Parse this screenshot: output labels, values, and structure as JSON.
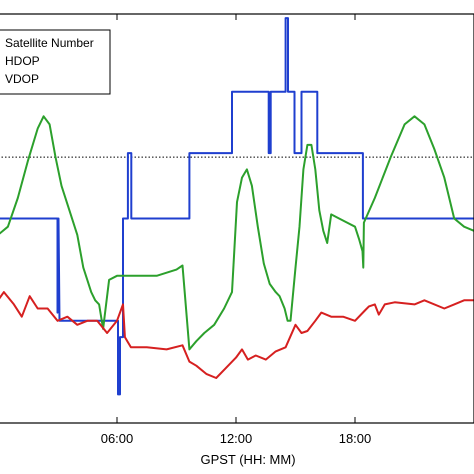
{
  "chart_data": {
    "type": "line",
    "xlabel": "GPST (HH: MM)",
    "xlim": [
      0,
      24
    ],
    "x_ticks": [
      {
        "value": 6,
        "label": "06:00"
      },
      {
        "value": 12,
        "label": "12:00"
      },
      {
        "value": 18,
        "label": "18:00"
      }
    ],
    "legend": {
      "placement": "top-left",
      "entries": [
        "Satellite Number",
        "HDOP",
        "VDOP"
      ]
    },
    "reference_line": {
      "style": "dotted",
      "y": 6.5
    },
    "grid": false,
    "series": [
      {
        "name": "Satellite Number",
        "color": "#1f3fcf",
        "points": [
          [
            0,
            5
          ],
          [
            3.0,
            5
          ],
          [
            3.0,
            2.7
          ],
          [
            3.05,
            5
          ],
          [
            3.1,
            2.5
          ],
          [
            6.05,
            2.5
          ],
          [
            6.05,
            0.7
          ],
          [
            6.15,
            0.7
          ],
          [
            6.15,
            2.1
          ],
          [
            6.3,
            2.1
          ],
          [
            6.3,
            5
          ],
          [
            6.55,
            5
          ],
          [
            6.55,
            6.6
          ],
          [
            6.72,
            6.6
          ],
          [
            6.72,
            5
          ],
          [
            9.65,
            5
          ],
          [
            9.65,
            6.6
          ],
          [
            11.8,
            6.6
          ],
          [
            11.8,
            8.1
          ],
          [
            13.65,
            8.1
          ],
          [
            13.65,
            6.6
          ],
          [
            13.75,
            6.6
          ],
          [
            13.75,
            8.1
          ],
          [
            14.5,
            8.1
          ],
          [
            14.5,
            9.9
          ],
          [
            14.62,
            9.9
          ],
          [
            14.62,
            8.1
          ],
          [
            14.95,
            8.1
          ],
          [
            14.95,
            6.6
          ],
          [
            15.3,
            6.6
          ],
          [
            15.3,
            8.1
          ],
          [
            16.1,
            8.1
          ],
          [
            16.1,
            6.6
          ],
          [
            18.4,
            6.6
          ],
          [
            18.4,
            5
          ],
          [
            24,
            5
          ]
        ]
      },
      {
        "name": "HDOP",
        "color": "#2ca02c",
        "points": [
          [
            0,
            4.6
          ],
          [
            0.5,
            4.8
          ],
          [
            1.0,
            5.5
          ],
          [
            1.5,
            6.4
          ],
          [
            2.0,
            7.2
          ],
          [
            2.3,
            7.5
          ],
          [
            2.6,
            7.3
          ],
          [
            2.9,
            6.5
          ],
          [
            3.2,
            5.8
          ],
          [
            3.6,
            5.2
          ],
          [
            4.0,
            4.6
          ],
          [
            4.3,
            3.8
          ],
          [
            4.5,
            3.5
          ],
          [
            4.7,
            3.2
          ],
          [
            4.9,
            3.0
          ],
          [
            5.1,
            2.9
          ],
          [
            5.3,
            2.3
          ],
          [
            5.6,
            3.5
          ],
          [
            6.0,
            3.6
          ],
          [
            7.0,
            3.6
          ],
          [
            8.0,
            3.6
          ],
          [
            9.0,
            3.75
          ],
          [
            9.3,
            3.85
          ],
          [
            9.65,
            1.8
          ],
          [
            10.0,
            2.0
          ],
          [
            10.4,
            2.2
          ],
          [
            10.9,
            2.4
          ],
          [
            11.4,
            2.8
          ],
          [
            11.8,
            3.2
          ],
          [
            12.05,
            5.4
          ],
          [
            12.3,
            6.0
          ],
          [
            12.55,
            6.2
          ],
          [
            12.8,
            5.8
          ],
          [
            13.1,
            4.8
          ],
          [
            13.4,
            3.9
          ],
          [
            13.7,
            3.4
          ],
          [
            14.0,
            3.2
          ],
          [
            14.2,
            3.1
          ],
          [
            14.45,
            2.8
          ],
          [
            14.6,
            2.5
          ],
          [
            14.75,
            2.5
          ],
          [
            15.0,
            3.8
          ],
          [
            15.2,
            4.8
          ],
          [
            15.4,
            6.2
          ],
          [
            15.6,
            6.8
          ],
          [
            15.8,
            6.8
          ],
          [
            16.0,
            6.2
          ],
          [
            16.2,
            5.2
          ],
          [
            16.4,
            4.7
          ],
          [
            16.6,
            4.4
          ],
          [
            16.8,
            5.1
          ],
          [
            17.2,
            5.0
          ],
          [
            17.6,
            4.9
          ],
          [
            18.0,
            4.8
          ],
          [
            18.2,
            4.5
          ],
          [
            18.38,
            4.2
          ],
          [
            18.42,
            3.8
          ],
          [
            18.45,
            4.9
          ],
          [
            19.0,
            5.5
          ],
          [
            19.8,
            6.5
          ],
          [
            20.5,
            7.3
          ],
          [
            21.0,
            7.5
          ],
          [
            21.5,
            7.3
          ],
          [
            22.0,
            6.7
          ],
          [
            22.5,
            6.0
          ],
          [
            23.0,
            5.0
          ],
          [
            23.5,
            4.8
          ],
          [
            24,
            4.7
          ]
        ]
      },
      {
        "name": "VDOP",
        "color": "#d62020",
        "points": [
          [
            0,
            3.0
          ],
          [
            0.3,
            3.2
          ],
          [
            0.8,
            2.9
          ],
          [
            1.2,
            2.6
          ],
          [
            1.6,
            3.1
          ],
          [
            2.0,
            2.8
          ],
          [
            2.5,
            2.8
          ],
          [
            3.0,
            2.5
          ],
          [
            3.5,
            2.6
          ],
          [
            4.0,
            2.4
          ],
          [
            4.5,
            2.5
          ],
          [
            5.0,
            2.5
          ],
          [
            5.5,
            2.2
          ],
          [
            6.0,
            2.5
          ],
          [
            6.3,
            2.9
          ],
          [
            6.4,
            2.1
          ],
          [
            6.7,
            1.85
          ],
          [
            7.5,
            1.85
          ],
          [
            8.5,
            1.8
          ],
          [
            9.3,
            1.9
          ],
          [
            9.65,
            1.5
          ],
          [
            10.0,
            1.4
          ],
          [
            10.5,
            1.2
          ],
          [
            11.0,
            1.1
          ],
          [
            11.5,
            1.35
          ],
          [
            12.0,
            1.6
          ],
          [
            12.3,
            1.8
          ],
          [
            12.6,
            1.55
          ],
          [
            13.0,
            1.65
          ],
          [
            13.5,
            1.55
          ],
          [
            14.0,
            1.75
          ],
          [
            14.5,
            1.85
          ],
          [
            15.0,
            2.4
          ],
          [
            15.3,
            2.2
          ],
          [
            15.6,
            2.25
          ],
          [
            16.0,
            2.5
          ],
          [
            16.3,
            2.7
          ],
          [
            16.8,
            2.6
          ],
          [
            17.4,
            2.6
          ],
          [
            18.0,
            2.5
          ],
          [
            18.5,
            2.75
          ],
          [
            18.7,
            2.85
          ],
          [
            19.0,
            2.9
          ],
          [
            19.2,
            2.65
          ],
          [
            19.5,
            2.9
          ],
          [
            20.0,
            2.95
          ],
          [
            21.0,
            2.9
          ],
          [
            21.5,
            3.0
          ],
          [
            22.5,
            2.8
          ],
          [
            23.0,
            2.9
          ],
          [
            23.5,
            3.0
          ],
          [
            24,
            3.0
          ]
        ]
      }
    ]
  }
}
